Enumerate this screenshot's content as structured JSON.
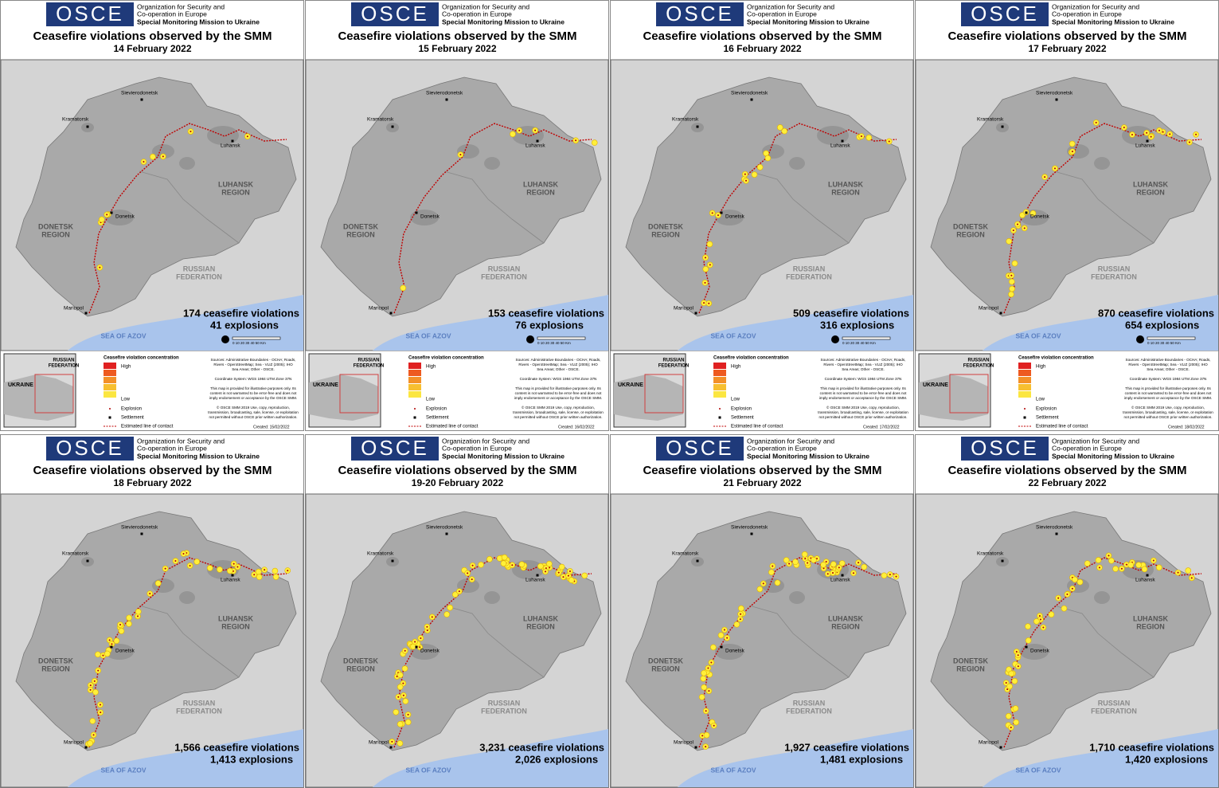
{
  "organization": {
    "acronym": "OSCE",
    "line1": "Organization for Security and",
    "line2": "Co-operation in Europe",
    "line3": "Special Monitoring Mission to Ukraine"
  },
  "title": "Ceasefire violations observed by the SMM",
  "map_labels": {
    "sievierodonetsk": "Sievierodonetsk",
    "kramatorsk": "Kramatorsk",
    "luhansk": "Luhansk",
    "luhansk_region": [
      "LUHANSK",
      "REGION"
    ],
    "donetsk": "Donetsk",
    "donetsk_region": [
      "DONETSK",
      "REGION"
    ],
    "russian_federation": [
      "RUSSIAN",
      "FEDERATION"
    ],
    "mariupol": "Mariupol",
    "sea": "SEA OF AZOV",
    "scale": "0  10  20  30  40  50 Km"
  },
  "legend": {
    "inset_russia": [
      "RUSSIAN",
      "FEDERATION"
    ],
    "inset_ukraine": "UKRAINE",
    "title": "Ceasefire violation concentration",
    "high": "High",
    "low": "Low",
    "explosion": "Explosion",
    "settlement": "Settlement",
    "line": "Estimated line of contact",
    "sources": [
      "Sources: Administrative Boundaries - OCHA; Roads,",
      "Rivers - OpenStreetMap; Sea - VLIZ (2005); IHO",
      "Sea Areas; Other - OSCE."
    ],
    "coordinates": "Coordinate System: WGS 1984 UTM Zone 37N",
    "disclaimer": [
      "This map is provided for illustrative purposes only. Its",
      "content is not warranted to be error-free and does not",
      "imply endorsement or acceptance by the OSCE SMM."
    ],
    "copyright": [
      "© OSCE SMM 2019 Use, copy, reproduction,",
      "transmission, broadcasting, sale, license, or exploitation",
      "not permitted without OSCE prior written authorization."
    ]
  },
  "panels": [
    {
      "date": "14 February 2022",
      "violations": "174 ceasefire violations",
      "explosions": "41 explosions",
      "created": "Created: 15/02/2022"
    },
    {
      "date": "15 February 2022",
      "violations": "153 ceasefire violations",
      "explosions": "76 explosions",
      "created": "Created: 16/02/2022"
    },
    {
      "date": "16 February 2022",
      "violations": "509 ceasefire violations",
      "explosions": "316 explosions",
      "created": "Created: 17/02/2022"
    },
    {
      "date": "17 February 2022",
      "violations": "870 ceasefire violations",
      "explosions": "654 explosions",
      "created": "Created: 18/02/2022"
    },
    {
      "date": "18 February 2022",
      "violations": "1,566 ceasefire violations",
      "explosions": "1,413 explosions"
    },
    {
      "date": "19-20 February 2022",
      "violations": "3,231 ceasefire violations",
      "explosions": "2,026 explosions"
    },
    {
      "date": "21 February 2022",
      "violations": "1,927 ceasefire violations",
      "explosions": "1,481 explosions"
    },
    {
      "date": "22 February 2022",
      "violations": "1,710 ceasefire violations",
      "explosions": "1,420 explosions"
    }
  ]
}
